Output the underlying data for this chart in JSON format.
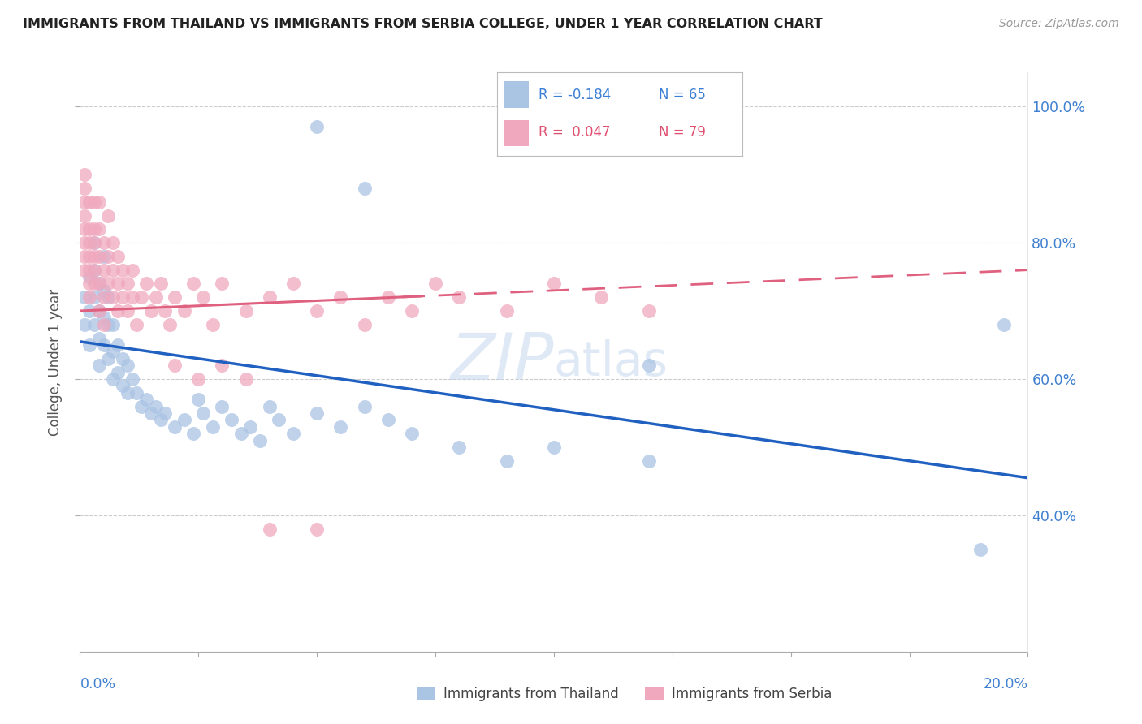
{
  "title": "IMMIGRANTS FROM THAILAND VS IMMIGRANTS FROM SERBIA COLLEGE, UNDER 1 YEAR CORRELATION CHART",
  "source": "Source: ZipAtlas.com",
  "ylabel": "College, Under 1 year",
  "xmin": 0.0,
  "xmax": 0.2,
  "ymin": 0.2,
  "ymax": 1.05,
  "watermark_zip": "ZIP",
  "watermark_atlas": "atlas",
  "legend_r1": "R = -0.184",
  "legend_n1": "N = 65",
  "legend_r2": "R =  0.047",
  "legend_n2": "N = 79",
  "legend_label1": "Immigrants from Thailand",
  "legend_label2": "Immigrants from Serbia",
  "color_thailand": "#aac4e4",
  "color_serbia": "#f0a8be",
  "trendline_color_thailand": "#2060c0",
  "trendline_color_serbia": "#e06080",
  "ytick_vals": [
    0.4,
    0.6,
    0.8,
    1.0
  ],
  "ytick_labels": [
    "40.0%",
    "60.0%",
    "80.0%",
    "100.0%"
  ],
  "right_label_color": "#4080d0",
  "xlabel_color": "#4080d0",
  "thailand_x": [
    0.001,
    0.001,
    0.002,
    0.002,
    0.002,
    0.003,
    0.003,
    0.003,
    0.003,
    0.004,
    0.004,
    0.004,
    0.004,
    0.005,
    0.005,
    0.005,
    0.005,
    0.006,
    0.006,
    0.006,
    0.007,
    0.007,
    0.007,
    0.008,
    0.008,
    0.009,
    0.009,
    0.01,
    0.01,
    0.011,
    0.012,
    0.013,
    0.014,
    0.015,
    0.016,
    0.017,
    0.018,
    0.02,
    0.022,
    0.024,
    0.025,
    0.026,
    0.028,
    0.03,
    0.032,
    0.034,
    0.036,
    0.038,
    0.04,
    0.042,
    0.045,
    0.05,
    0.055,
    0.06,
    0.065,
    0.07,
    0.08,
    0.09,
    0.1,
    0.12,
    0.05,
    0.06,
    0.12,
    0.19,
    0.195
  ],
  "thailand_y": [
    0.72,
    0.68,
    0.75,
    0.7,
    0.65,
    0.8,
    0.76,
    0.72,
    0.68,
    0.74,
    0.7,
    0.66,
    0.62,
    0.78,
    0.73,
    0.69,
    0.65,
    0.72,
    0.68,
    0.63,
    0.68,
    0.64,
    0.6,
    0.65,
    0.61,
    0.63,
    0.59,
    0.62,
    0.58,
    0.6,
    0.58,
    0.56,
    0.57,
    0.55,
    0.56,
    0.54,
    0.55,
    0.53,
    0.54,
    0.52,
    0.57,
    0.55,
    0.53,
    0.56,
    0.54,
    0.52,
    0.53,
    0.51,
    0.56,
    0.54,
    0.52,
    0.55,
    0.53,
    0.56,
    0.54,
    0.52,
    0.5,
    0.48,
    0.5,
    0.48,
    0.97,
    0.88,
    0.62,
    0.35,
    0.68
  ],
  "serbia_x": [
    0.001,
    0.001,
    0.001,
    0.001,
    0.001,
    0.001,
    0.001,
    0.001,
    0.002,
    0.002,
    0.002,
    0.002,
    0.002,
    0.002,
    0.002,
    0.003,
    0.003,
    0.003,
    0.003,
    0.003,
    0.003,
    0.004,
    0.004,
    0.004,
    0.004,
    0.004,
    0.005,
    0.005,
    0.005,
    0.005,
    0.006,
    0.006,
    0.006,
    0.007,
    0.007,
    0.007,
    0.008,
    0.008,
    0.008,
    0.009,
    0.009,
    0.01,
    0.01,
    0.011,
    0.011,
    0.012,
    0.013,
    0.014,
    0.015,
    0.016,
    0.017,
    0.018,
    0.019,
    0.02,
    0.022,
    0.024,
    0.026,
    0.028,
    0.03,
    0.035,
    0.04,
    0.045,
    0.05,
    0.055,
    0.06,
    0.065,
    0.07,
    0.075,
    0.08,
    0.09,
    0.1,
    0.11,
    0.12,
    0.04,
    0.05,
    0.02,
    0.025,
    0.03,
    0.035
  ],
  "serbia_y": [
    0.9,
    0.86,
    0.82,
    0.78,
    0.84,
    0.8,
    0.76,
    0.88,
    0.82,
    0.78,
    0.86,
    0.74,
    0.8,
    0.76,
    0.72,
    0.82,
    0.78,
    0.74,
    0.86,
    0.8,
    0.76,
    0.78,
    0.82,
    0.74,
    0.7,
    0.86,
    0.76,
    0.8,
    0.72,
    0.68,
    0.84,
    0.78,
    0.74,
    0.8,
    0.76,
    0.72,
    0.78,
    0.74,
    0.7,
    0.76,
    0.72,
    0.74,
    0.7,
    0.76,
    0.72,
    0.68,
    0.72,
    0.74,
    0.7,
    0.72,
    0.74,
    0.7,
    0.68,
    0.72,
    0.7,
    0.74,
    0.72,
    0.68,
    0.74,
    0.7,
    0.72,
    0.74,
    0.7,
    0.72,
    0.68,
    0.72,
    0.7,
    0.74,
    0.72,
    0.7,
    0.74,
    0.72,
    0.7,
    0.38,
    0.38,
    0.62,
    0.6,
    0.62,
    0.6
  ]
}
